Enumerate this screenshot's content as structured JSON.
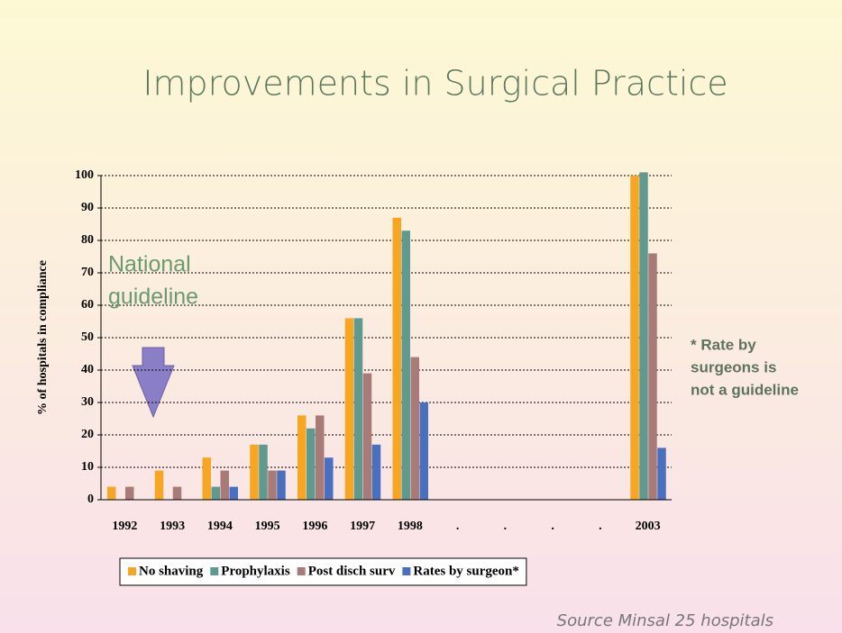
{
  "title": "Improvements in Surgical Practice",
  "chart_data": {
    "type": "bar",
    "ylabel": "% of hospitals in compliance",
    "categories": [
      "1992",
      "1993",
      "1994",
      "1995",
      "1996",
      "1997",
      "1998",
      ".",
      ".",
      ".",
      ".",
      "2003"
    ],
    "series": [
      {
        "name": "No shaving",
        "color": "#f6a623",
        "values": [
          4,
          9,
          13,
          17,
          26,
          56,
          87,
          null,
          null,
          null,
          null,
          100
        ]
      },
      {
        "name": "Prophylaxis",
        "color": "#5f9990",
        "values": [
          null,
          null,
          4,
          17,
          22,
          56,
          83,
          null,
          null,
          null,
          null,
          101
        ]
      },
      {
        "name": "Post disch surv",
        "color": "#a97b78",
        "values": [
          4,
          4,
          9,
          9,
          26,
          39,
          44,
          null,
          null,
          null,
          null,
          76
        ]
      },
      {
        "name": "Rates by surgeon*",
        "color": "#4a6fbf",
        "values": [
          null,
          null,
          4,
          9,
          13,
          17,
          30,
          null,
          null,
          null,
          null,
          16
        ]
      }
    ],
    "ylim": [
      0,
      100
    ],
    "yticks": [
      0,
      10,
      20,
      30,
      40,
      50,
      60,
      70,
      80,
      90,
      100
    ],
    "grid": true,
    "annotation": [
      "National",
      "guideline"
    ]
  },
  "note": [
    "* Rate by",
    "surgeons is",
    "not a guideline"
  ],
  "source": "Source Minsal 25 hospitals"
}
